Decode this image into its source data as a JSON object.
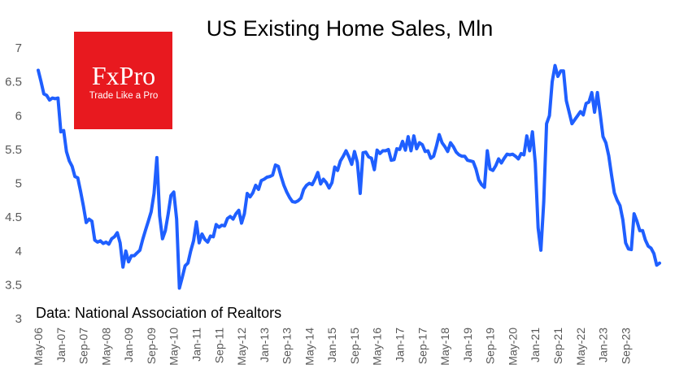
{
  "chart_data": {
    "type": "line",
    "title": "US Existing Home Sales, Mln",
    "xlabel": "",
    "ylabel": "",
    "ylim": [
      3,
      7
    ],
    "yticks": [
      3,
      3.5,
      4,
      4.5,
      5,
      5.5,
      6,
      6.5,
      7
    ],
    "ytick_labels": [
      "3",
      "3.5",
      "4",
      "4.5",
      "5",
      "5.5",
      "6",
      "6.5",
      "7"
    ],
    "xtick_labels": [
      "May-06",
      "Jan-07",
      "Sep-07",
      "May-08",
      "Jan-09",
      "Sep-09",
      "May-10",
      "Jan-11",
      "Sep-11",
      "May-12",
      "Jan-13",
      "Sep-13",
      "May-14",
      "Jan-15",
      "Sep-15",
      "May-16",
      "Jan-17",
      "Sep-17",
      "May-18",
      "Jan-19",
      "Sep-19",
      "May-20",
      "Jan-21",
      "Sep-21",
      "May-22",
      "Jan-23",
      "Sep-23"
    ],
    "series": [
      {
        "name": "US Existing Home Sales",
        "color": "#1f5fff",
        "start": "May-06",
        "frequency": "monthly",
        "values": [
          6.67,
          6.5,
          6.32,
          6.3,
          6.23,
          6.26,
          6.25,
          6.26,
          5.76,
          5.78,
          5.47,
          5.33,
          5.25,
          5.1,
          5.08,
          4.88,
          4.66,
          4.42,
          4.47,
          4.44,
          4.16,
          4.13,
          4.15,
          4.11,
          4.13,
          4.1,
          4.18,
          4.21,
          4.27,
          4.12,
          3.76,
          4.0,
          3.84,
          3.93,
          3.93,
          3.97,
          4.01,
          4.17,
          4.31,
          4.44,
          4.58,
          4.85,
          5.38,
          4.52,
          4.18,
          4.3,
          4.54,
          4.82,
          4.87,
          4.47,
          3.45,
          3.61,
          3.78,
          3.82,
          4.0,
          4.15,
          4.43,
          4.12,
          4.25,
          4.17,
          4.13,
          4.22,
          4.21,
          4.39,
          4.35,
          4.38,
          4.37,
          4.48,
          4.51,
          4.47,
          4.55,
          4.6,
          4.41,
          4.55,
          4.85,
          4.8,
          4.86,
          4.97,
          4.91,
          5.04,
          5.06,
          5.09,
          5.1,
          5.12,
          5.27,
          5.25,
          5.1,
          4.97,
          4.87,
          4.79,
          4.73,
          4.72,
          4.74,
          4.78,
          4.91,
          4.97,
          5.0,
          4.98,
          5.06,
          5.16,
          4.99,
          5.06,
          5.01,
          4.93,
          5.01,
          5.24,
          5.19,
          5.33,
          5.4,
          5.48,
          5.39,
          5.28,
          5.47,
          5.31,
          4.85,
          5.45,
          5.46,
          5.39,
          5.37,
          5.2,
          5.49,
          5.44,
          5.48,
          5.48,
          5.5,
          5.34,
          5.35,
          5.51,
          5.5,
          5.62,
          5.49,
          5.69,
          5.48,
          5.7,
          5.51,
          5.6,
          5.57,
          5.47,
          5.48,
          5.37,
          5.4,
          5.55,
          5.72,
          5.6,
          5.54,
          5.47,
          5.6,
          5.54,
          5.46,
          5.42,
          5.4,
          5.4,
          5.34,
          5.33,
          5.32,
          5.21,
          5.05,
          4.98,
          4.94,
          5.48,
          5.21,
          5.19,
          5.26,
          5.36,
          5.3,
          5.37,
          5.43,
          5.42,
          5.43,
          5.4,
          5.36,
          5.44,
          5.42,
          5.7,
          5.48,
          5.76,
          5.3,
          4.34,
          4.01,
          4.72,
          5.88,
          6.0,
          6.5,
          6.74,
          6.58,
          6.66,
          6.66,
          6.22,
          6.05,
          5.88,
          5.94,
          6.0,
          6.06,
          6.01,
          6.18,
          6.2,
          6.34,
          6.05,
          6.34,
          6.02,
          5.69,
          5.6,
          5.41,
          5.12,
          4.86,
          4.75,
          4.67,
          4.46,
          4.12,
          4.03,
          4.02,
          4.55,
          4.44,
          4.3,
          4.3,
          4.16,
          4.07,
          4.04,
          3.96,
          3.79,
          3.82
        ]
      }
    ]
  },
  "source_note": "Data: National Association of Realtors",
  "logo": {
    "name": "FxPro",
    "tagline": "Trade Like a Pro",
    "bg_color": "#e8191f"
  }
}
